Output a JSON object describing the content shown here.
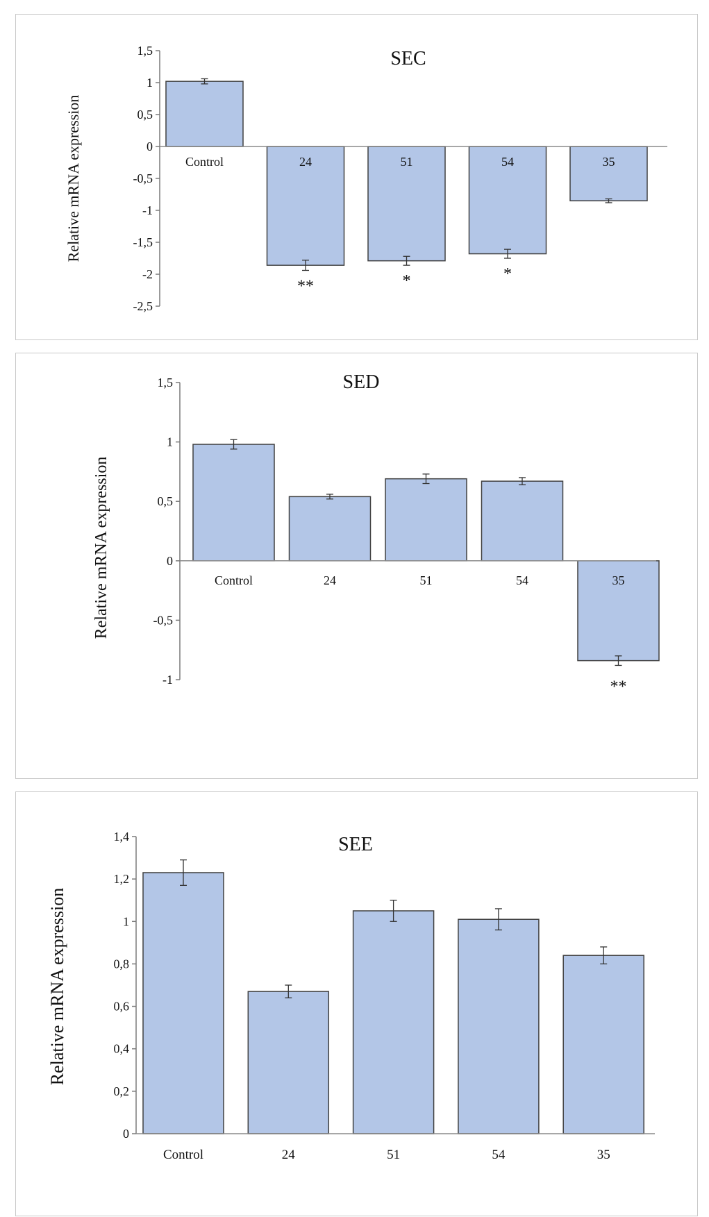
{
  "chart_data": [
    {
      "type": "bar",
      "title": "SEC",
      "ylabel": "Relative mRNA expression",
      "categories": [
        "Control",
        "24",
        "51",
        "54",
        "35"
      ],
      "values": [
        1.02,
        -1.86,
        -1.79,
        -1.68,
        -0.85
      ],
      "errors": [
        0.04,
        0.08,
        0.07,
        0.07,
        0.03
      ],
      "significance": [
        "",
        "**",
        "*",
        "*",
        ""
      ],
      "ylim": [
        -2.5,
        1.5
      ],
      "yticks": [
        1.5,
        1,
        0.5,
        0,
        -0.5,
        -1,
        -1.5,
        -2,
        -2.5
      ],
      "ytick_labels": [
        "1,5",
        "1",
        "0,5",
        "0",
        "-0,5",
        "-1",
        "-1,5",
        "-2",
        "-2,5"
      ],
      "bar_color": "#b3c6e7",
      "bar_edge": "#404040"
    },
    {
      "type": "bar",
      "title": "SED",
      "ylabel": "Relative mRNA expression",
      "categories": [
        "Control",
        "24",
        "51",
        "54",
        "35"
      ],
      "values": [
        0.98,
        0.54,
        0.69,
        0.67,
        -0.84
      ],
      "errors": [
        0.04,
        0.02,
        0.04,
        0.03,
        0.04
      ],
      "significance": [
        "",
        "",
        "",
        "",
        "**"
      ],
      "ylim": [
        -1,
        1.5
      ],
      "yticks": [
        1.5,
        1,
        0.5,
        0,
        -0.5,
        -1
      ],
      "ytick_labels": [
        "1,5",
        "1",
        "0,5",
        "0",
        "-0,5",
        "-1"
      ],
      "bar_color": "#b3c6e7",
      "bar_edge": "#404040"
    },
    {
      "type": "bar",
      "title": "SEE",
      "ylabel": "Relative mRNA expression",
      "categories": [
        "Control",
        "24",
        "51",
        "54",
        "35"
      ],
      "values": [
        1.23,
        0.67,
        1.05,
        1.01,
        0.84
      ],
      "errors": [
        0.06,
        0.03,
        0.05,
        0.05,
        0.04
      ],
      "significance": [
        "",
        "",
        "",
        "",
        ""
      ],
      "ylim": [
        0,
        1.4
      ],
      "yticks": [
        1.4,
        1.2,
        1,
        0.8,
        0.6,
        0.4,
        0.2,
        0
      ],
      "ytick_labels": [
        "1,4",
        "1,2",
        "1",
        "0,8",
        "0,6",
        "0,4",
        "0,2",
        "0"
      ],
      "bar_color": "#b3c6e7",
      "bar_edge": "#404040"
    }
  ]
}
